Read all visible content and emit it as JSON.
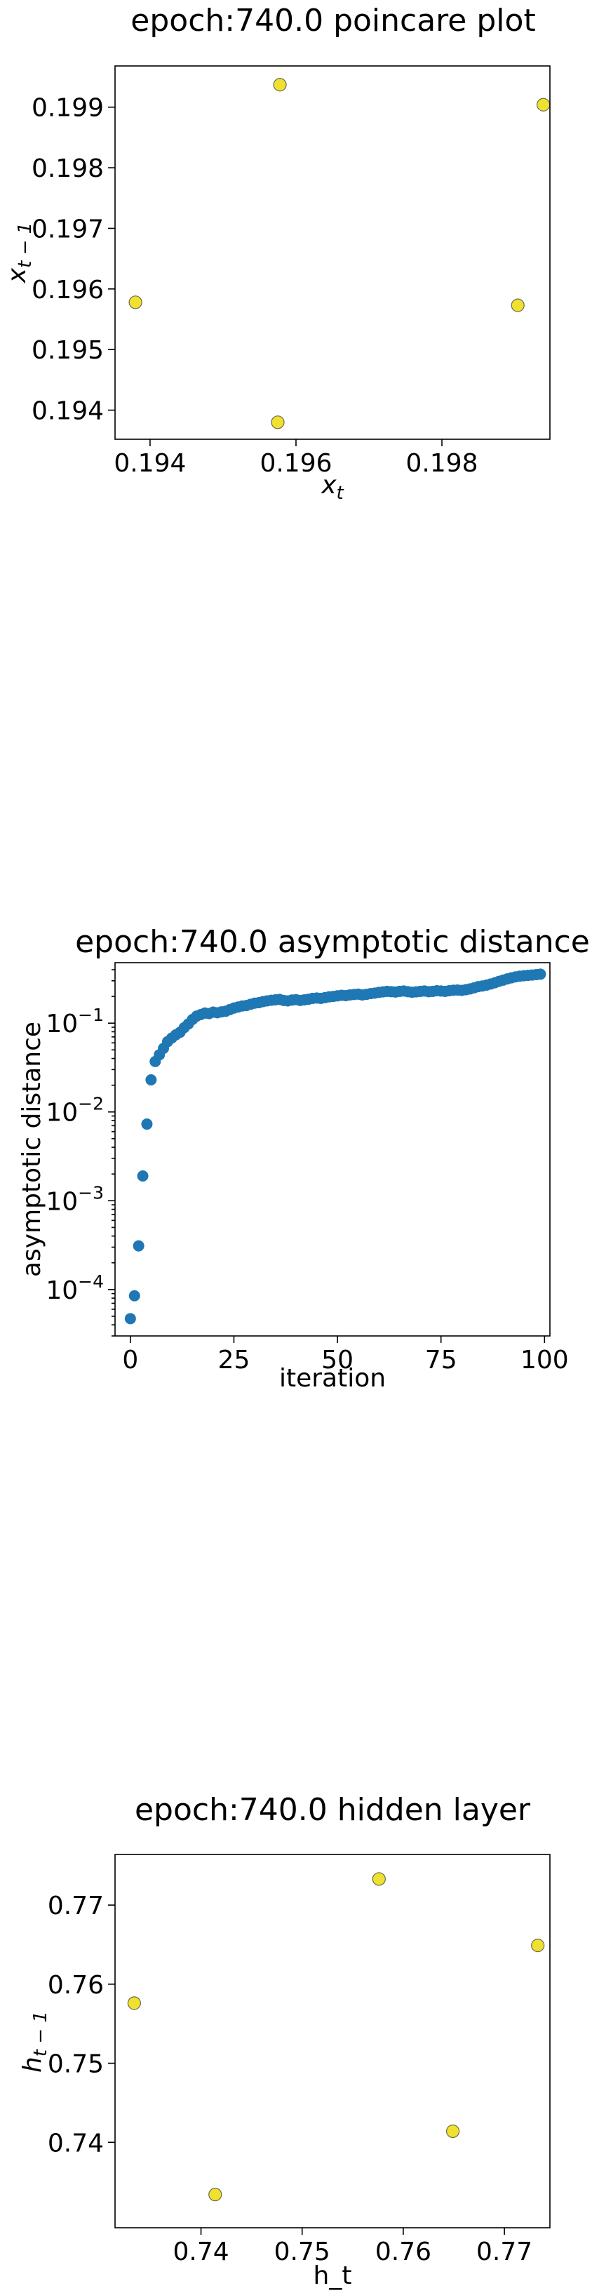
{
  "chart_data": [
    {
      "type": "scatter",
      "title": "epoch:740.0 poincare plot",
      "xlabel_base": "x",
      "xlabel_sub": "t",
      "ylabel_base": "x",
      "ylabel_sub": "t − 1",
      "xlim": [
        0.19352,
        0.19948
      ],
      "ylim": [
        0.19352,
        0.19968
      ],
      "xticks": [
        0.194,
        0.196,
        0.198
      ],
      "xtick_labels": [
        "0.194",
        "0.196",
        "0.198"
      ],
      "yticks": [
        0.194,
        0.195,
        0.196,
        0.197,
        0.198,
        0.199
      ],
      "ytick_labels": [
        "0.194",
        "0.195",
        "0.196",
        "0.197",
        "0.198",
        "0.199"
      ],
      "points": [
        {
          "x": 0.19578,
          "y": 0.19937
        },
        {
          "x": 0.19939,
          "y": 0.19904
        },
        {
          "x": 0.1938,
          "y": 0.19578
        },
        {
          "x": 0.19904,
          "y": 0.19573
        },
        {
          "x": 0.19575,
          "y": 0.1938
        }
      ],
      "marker_color": "#f0e130",
      "grid": false
    },
    {
      "type": "scatter",
      "title": "epoch:740.0 asymptotic distance",
      "xlabel": "iteration",
      "ylabel": "asymptotic distance",
      "xlim": [
        -3.7,
        101.3
      ],
      "ylim": [
        3e-05,
        0.48
      ],
      "yscale": "log",
      "xticks": [
        0,
        25,
        50,
        75,
        100
      ],
      "xtick_labels": [
        "0",
        "25",
        "50",
        "75",
        "100"
      ],
      "yticks": [
        0.0001,
        0.001,
        0.01,
        0.1
      ],
      "ytick_exponents": [
        "−4",
        "−3",
        "−2",
        "−1"
      ],
      "ytick_base": "10",
      "x": [
        0,
        1,
        2,
        3,
        4,
        5,
        6,
        7,
        8,
        9,
        10,
        11,
        12,
        13,
        14,
        15,
        16,
        17,
        18,
        19,
        20,
        21,
        22,
        23,
        24,
        25,
        26,
        27,
        28,
        29,
        30,
        31,
        32,
        33,
        34,
        35,
        36,
        37,
        38,
        39,
        40,
        41,
        42,
        43,
        44,
        45,
        46,
        47,
        48,
        49,
        50,
        51,
        52,
        53,
        54,
        55,
        56,
        57,
        58,
        59,
        60,
        61,
        62,
        63,
        64,
        65,
        66,
        67,
        68,
        69,
        70,
        71,
        72,
        73,
        74,
        75,
        76,
        77,
        78,
        79,
        80,
        81,
        82,
        83,
        84,
        85,
        86,
        87,
        88,
        89,
        90,
        91,
        92,
        93,
        94,
        95,
        96,
        97,
        98,
        99
      ],
      "y": [
        4.7e-05,
        8.5e-05,
        0.00031,
        0.0019,
        0.0073,
        0.023,
        0.037,
        0.044,
        0.052,
        0.062,
        0.068,
        0.074,
        0.079,
        0.089,
        0.098,
        0.11,
        0.12,
        0.125,
        0.13,
        0.128,
        0.133,
        0.131,
        0.134,
        0.136,
        0.142,
        0.148,
        0.152,
        0.156,
        0.158,
        0.163,
        0.168,
        0.17,
        0.175,
        0.178,
        0.181,
        0.183,
        0.185,
        0.18,
        0.178,
        0.182,
        0.184,
        0.18,
        0.183,
        0.186,
        0.19,
        0.192,
        0.19,
        0.194,
        0.198,
        0.2,
        0.203,
        0.206,
        0.204,
        0.208,
        0.21,
        0.212,
        0.208,
        0.211,
        0.215,
        0.218,
        0.222,
        0.225,
        0.228,
        0.226,
        0.224,
        0.228,
        0.23,
        0.226,
        0.223,
        0.225,
        0.228,
        0.23,
        0.226,
        0.228,
        0.232,
        0.23,
        0.228,
        0.232,
        0.235,
        0.236,
        0.234,
        0.238,
        0.243,
        0.25,
        0.258,
        0.262,
        0.268,
        0.276,
        0.285,
        0.296,
        0.305,
        0.315,
        0.324,
        0.332,
        0.338,
        0.342,
        0.345,
        0.348,
        0.352,
        0.356
      ],
      "marker_color": "#1f77b4",
      "grid": false
    },
    {
      "type": "scatter",
      "title": "epoch:740.0 hidden layer",
      "xlabel": "h_t",
      "ylabel_base": "h",
      "ylabel_sub": "t − 1",
      "xlim": [
        0.7315,
        0.7745
      ],
      "ylim": [
        0.7292,
        0.7764
      ],
      "xticks": [
        0.74,
        0.75,
        0.76,
        0.77
      ],
      "xtick_labels": [
        "0.74",
        "0.75",
        "0.76",
        "0.77"
      ],
      "yticks": [
        0.74,
        0.75,
        0.76,
        0.77
      ],
      "ytick_labels": [
        "0.74",
        "0.75",
        "0.76",
        "0.77"
      ],
      "points": [
        {
          "x": 0.7576,
          "y": 0.7733
        },
        {
          "x": 0.7733,
          "y": 0.7649
        },
        {
          "x": 0.7334,
          "y": 0.7576
        },
        {
          "x": 0.7649,
          "y": 0.7414
        },
        {
          "x": 0.7414,
          "y": 0.7334
        }
      ],
      "marker_color": "#f0e130",
      "grid": false
    }
  ]
}
